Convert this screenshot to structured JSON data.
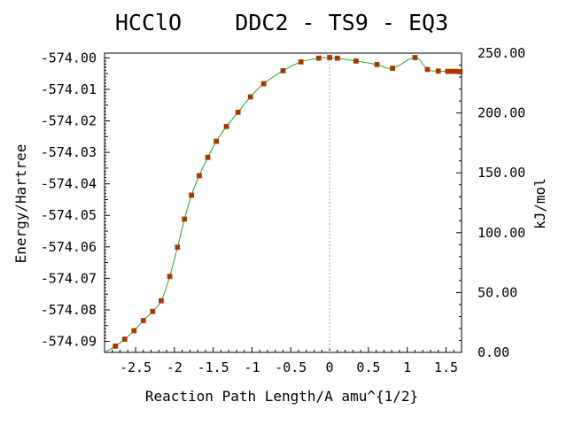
{
  "chart_data": {
    "type": "line",
    "title": "HCClO    DDC2 - TS9 - EQ3",
    "xlabel": "Reaction Path Length/A amu^{1/2}",
    "ylabel": "Energy/Hartree",
    "y2label": "kJ/mol",
    "xlim": [
      -2.9,
      1.7
    ],
    "ylim": [
      -574.0935,
      -573.9985
    ],
    "y2lim": [
      0.0,
      250.0
    ],
    "x_ticks": [
      -2.5,
      -2,
      -1.5,
      -1,
      -0.5,
      0,
      0.5,
      1,
      1.5
    ],
    "x_tick_labels": [
      "-2.5",
      "-2",
      "-1.5",
      "-1",
      "-0.5",
      "0",
      "0.5",
      "1",
      "1.5"
    ],
    "y_ticks": [
      -574.0,
      -574.01,
      -574.02,
      -574.03,
      -574.04,
      -574.05,
      -574.06,
      -574.07,
      -574.08,
      -574.09
    ],
    "y_tick_labels": [
      "-574.00",
      "-574.01",
      "-574.02",
      "-574.03",
      "-574.04",
      "-574.05",
      "-574.06",
      "-574.07",
      "-574.08",
      "-574.09"
    ],
    "y2_ticks": [
      0,
      50,
      100,
      150,
      200,
      250
    ],
    "y2_tick_labels": [
      "0.00",
      "50.00",
      "100.00",
      "150.00",
      "200.00",
      "250.00"
    ],
    "ts_marker_x": 0,
    "grid": false,
    "colors": {
      "curve": "#2ca02c",
      "marker_fill": "#cc2200",
      "marker_edge": "#7a5a00",
      "ts_line": "#aaaaaa",
      "axes": "#000000"
    },
    "series": [
      {
        "x": [
          -2.76,
          -2.64,
          -2.52,
          -2.4,
          -2.28,
          -2.17,
          -2.06,
          -1.96,
          -1.87,
          -1.78,
          -1.68,
          -1.57,
          -1.46,
          -1.33,
          -1.18,
          -1.02,
          -0.85,
          -0.6,
          -0.37,
          -0.14,
          0.0,
          0.1,
          0.34,
          0.61,
          0.81,
          1.1,
          1.26,
          1.4,
          1.52,
          1.58,
          1.63,
          1.68
        ],
        "y": [
          -574.0915,
          -574.0893,
          -574.0866,
          -574.0834,
          -574.0805,
          -574.0771,
          -574.0694,
          -574.0601,
          -574.0512,
          -574.0436,
          -574.0374,
          -574.0316,
          -574.0265,
          -574.0218,
          -574.0173,
          -574.0124,
          -574.0082,
          -574.0041,
          -574.0013,
          -574.0001,
          -573.9999,
          -574.0001,
          -574.001,
          -574.0021,
          -574.0033,
          -573.9999,
          -574.0037,
          -574.0042,
          -574.0043,
          -574.0043,
          -574.0043,
          -574.0044
        ]
      }
    ]
  }
}
